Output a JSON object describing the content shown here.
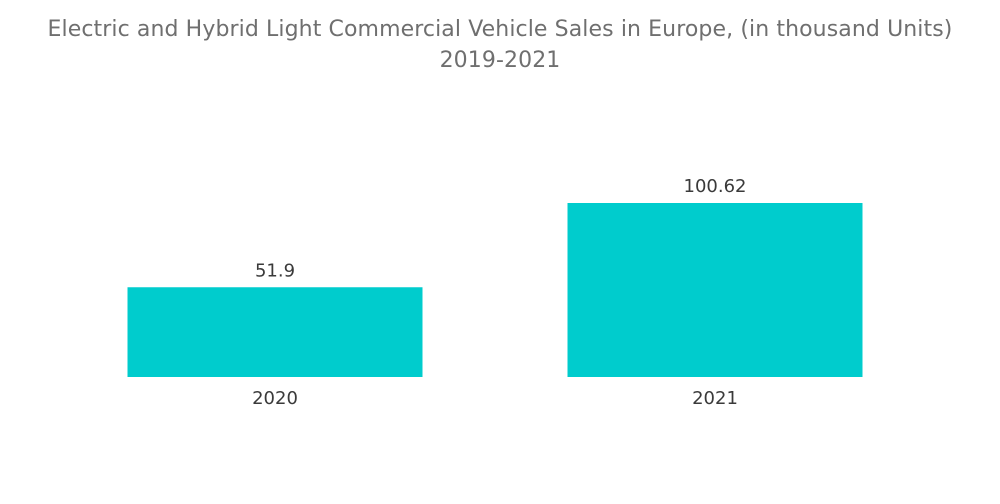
{
  "chart_data": {
    "type": "bar",
    "title": "Electric and Hybrid Light Commercial Vehicle Sales in Europe, (in thousand Units)",
    "subtitle": "2019-2021",
    "categories": [
      "2020",
      "2021"
    ],
    "values": [
      51.9,
      100.62
    ],
    "value_labels": [
      "51.9",
      "100.62"
    ],
    "bar_color": "#00cccd",
    "ylim": [
      0,
      100.62
    ],
    "grid": false,
    "legend": "none"
  }
}
